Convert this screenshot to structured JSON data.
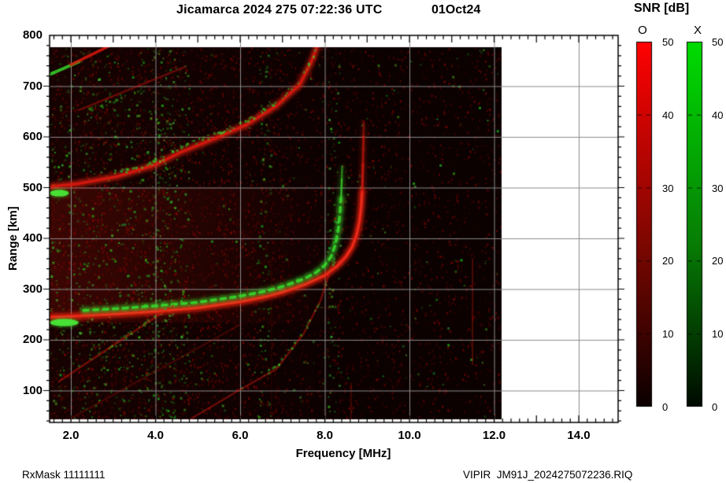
{
  "header": {
    "title": "Jicamarca 2024 275 07:22:36 UTC",
    "date": "01Oct24"
  },
  "colorbar_header": {
    "title": "SNR [dB]"
  },
  "footer": {
    "rx_mask": "RxMask 11111111",
    "filename": "VIPIR  JM91J_2024275072236.RIQ"
  },
  "chart_data": {
    "type": "heatmap",
    "subtype": "ionogram",
    "title": "Jicamarca 2024 275 07:22:36 UTC",
    "date_label": "01Oct24",
    "x_axis": {
      "label": "Frequency [MHz]",
      "min": 1.5,
      "max": 15.0,
      "tick_values": [
        2,
        4,
        6,
        8,
        10,
        12,
        14
      ],
      "tick_labels": [
        "2.0",
        "4.0",
        "6.0",
        "8.0",
        "10.0",
        "12.0",
        "14.0"
      ],
      "minor_step": 0.2,
      "grid": true
    },
    "y_axis": {
      "label": "Range [km]",
      "min": 35,
      "max": 800,
      "tick_values": [
        800,
        700,
        600,
        500,
        400,
        300,
        200,
        100
      ],
      "tick_labels": [
        "800",
        "700",
        "600",
        "500",
        "400",
        "300",
        "200",
        "100"
      ],
      "minor_step": 20,
      "grid": true
    },
    "data_region": {
      "f_min": 1.5,
      "f_max": 12.2,
      "r_min": 43,
      "r_max": 780
    },
    "colorbars": [
      {
        "mode_label": "O",
        "title": "SNR [dB]",
        "min": 0,
        "max": 50,
        "tick_values": [
          50,
          40,
          30,
          20,
          10,
          0
        ],
        "tick_labels": [
          "50",
          "40",
          "30",
          "20",
          "10",
          "0"
        ],
        "top_color": "#ff0202",
        "bottom_color": "#0a0000"
      },
      {
        "mode_label": "X",
        "title": "SNR [dB]",
        "min": 0,
        "max": 50,
        "tick_values": [
          50,
          40,
          30,
          20,
          10,
          0
        ],
        "tick_labels": [
          "50",
          "40",
          "30",
          "20",
          "10",
          "0"
        ],
        "top_color": "#00dc02",
        "bottom_color": "#000a00"
      }
    ],
    "traces": [
      {
        "name": "f-layer-o-mode",
        "mode": "O",
        "color": "red",
        "width": 4.2,
        "alpha": 0.95,
        "glow": true,
        "core": true,
        "points": [
          [
            1.5,
            245
          ],
          [
            2.2,
            247
          ],
          [
            3.1,
            251
          ],
          [
            4.0,
            256
          ],
          [
            5.0,
            263
          ],
          [
            6.0,
            275
          ],
          [
            6.6,
            285
          ],
          [
            7.0,
            294
          ],
          [
            7.5,
            308
          ],
          [
            8.0,
            327
          ],
          [
            8.3,
            346
          ],
          [
            8.5,
            364
          ],
          [
            8.65,
            384
          ],
          [
            8.75,
            407
          ],
          [
            8.82,
            434
          ],
          [
            8.86,
            464
          ],
          [
            8.88,
            492
          ]
        ],
        "tail": [
          [
            8.885,
            492
          ],
          [
            8.9,
            545
          ],
          [
            8.915,
            600
          ],
          [
            8.92,
            628
          ]
        ]
      },
      {
        "name": "f-layer-x-mode",
        "mode": "X",
        "color": "green",
        "width": 3.6,
        "alpha": 0.92,
        "glow": true,
        "dash": [
          6,
          6.5
        ],
        "points": [
          [
            2.3,
            258
          ],
          [
            3.2,
            262
          ],
          [
            4.0,
            267
          ],
          [
            5.0,
            274
          ],
          [
            6.0,
            286
          ],
          [
            6.6,
            296
          ],
          [
            7.0,
            305
          ],
          [
            7.5,
            320
          ],
          [
            7.8,
            333
          ],
          [
            8.0,
            347
          ],
          [
            8.15,
            364
          ],
          [
            8.25,
            388
          ],
          [
            8.32,
            418
          ],
          [
            8.36,
            452
          ],
          [
            8.38,
            478
          ]
        ],
        "tail": [
          [
            8.385,
            478
          ],
          [
            8.4,
            516
          ],
          [
            8.41,
            542
          ]
        ],
        "blob": {
          "f1": 1.5,
          "f2": 2.18,
          "r": 234,
          "h": 9
        }
      },
      {
        "name": "second-hop-o-mode",
        "mode": "O",
        "color": "red",
        "width": 3.6,
        "alpha": 0.85,
        "glow": true,
        "points": [
          [
            1.5,
            502
          ],
          [
            2.2,
            508
          ],
          [
            3.1,
            522
          ],
          [
            4.0,
            545
          ],
          [
            4.6,
            570
          ],
          [
            5.35,
            595
          ],
          [
            6.15,
            624
          ],
          [
            6.84,
            660
          ],
          [
            7.4,
            702
          ],
          [
            7.67,
            746
          ],
          [
            7.82,
            778
          ]
        ],
        "dots": {
          "from": 3.0,
          "to": 7.8,
          "offset": 10,
          "count": 90,
          "alpha": 0.75
        },
        "blob": {
          "f1": 1.5,
          "f2": 1.95,
          "r": 489,
          "h": 8
        }
      },
      {
        "name": "upper-streak-green",
        "mode": "X",
        "color": "green",
        "width": 4,
        "alpha": 0.85,
        "points": [
          [
            1.5,
            723
          ],
          [
            2.19,
            748
          ]
        ]
      },
      {
        "name": "upper-streak-red",
        "mode": "O",
        "color": "red",
        "width": 3.5,
        "alpha": 0.85,
        "points": [
          [
            2.0,
            742
          ],
          [
            2.95,
            781
          ]
        ]
      },
      {
        "name": "upper-streak-2",
        "mode": "O",
        "color": "red",
        "width": 2.5,
        "alpha": 0.4,
        "points": [
          [
            2.19,
            653
          ],
          [
            4.7,
            738
          ]
        ],
        "dots": {
          "from": 2.3,
          "to": 3.8,
          "offset": -6,
          "count": 22,
          "alpha": 0.5
        }
      },
      {
        "name": "lower-streak-1",
        "mode": "O",
        "color": "red",
        "width": 2.5,
        "alpha": 0.45,
        "points": [
          [
            1.72,
            118
          ],
          [
            4.42,
            268
          ]
        ],
        "dots": {
          "from": 2.3,
          "to": 4.4,
          "offset": 4,
          "count": 26,
          "alpha": 0.55
        }
      },
      {
        "name": "lower-streak-2",
        "mode": "O",
        "color": "red",
        "width": 2.4,
        "alpha": 0.45,
        "points": [
          [
            4.85,
            45
          ],
          [
            6.0,
            102
          ],
          [
            6.85,
            142
          ],
          [
            7.5,
            212
          ],
          [
            7.9,
            278
          ],
          [
            8.18,
            350
          ]
        ],
        "dots": {
          "from": 6.6,
          "to": 8.2,
          "offset": 6,
          "count": 28,
          "alpha": 0.6
        }
      },
      {
        "name": "lower-streak-3",
        "mode": "O",
        "color": "red",
        "width": 2,
        "alpha": 0.25,
        "points": [
          [
            2.0,
            45
          ],
          [
            6.0,
            230
          ]
        ],
        "dots": {
          "from": 2.2,
          "to": 5.5,
          "offset": 3,
          "count": 12,
          "alpha": 0.35
        }
      }
    ],
    "rfi_lines": [
      {
        "f": 11.49,
        "r1": 150,
        "r2": 360,
        "alpha": 0.4
      },
      {
        "f": 8.62,
        "r1": 40,
        "r2": 115,
        "alpha": 0.3
      },
      {
        "f": 6.74,
        "r1": 40,
        "r2": 360,
        "alpha": 0.1
      }
    ],
    "noise": {
      "seed": 20242751,
      "red_count": 8200,
      "green_count": 1250,
      "green_columns": [
        4.05,
        4.3,
        6.56,
        8.2
      ]
    },
    "colors": {
      "o_mode": "#e0150c",
      "x_mode": "#2ed621",
      "grid": "#8a8a8a",
      "data_bg": "#070101"
    }
  }
}
